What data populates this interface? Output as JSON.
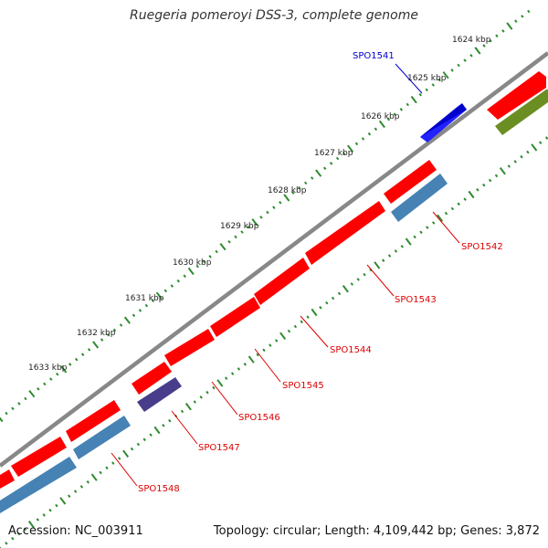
{
  "title": "Ruegeria pomeroyi DSS-3, complete genome",
  "footer": {
    "accession": "Accession: NC_003911",
    "summary": "Topology: circular; Length: 4,109,442 bp; Genes: 3,872"
  },
  "colors": {
    "background": "#ffffff",
    "backbone": "#888888",
    "tick": "#2e8b2e",
    "forward_gene": "#ff0000",
    "reverse_gene": "#4682b4",
    "highlight_gene": "#0000ff",
    "olive_gene": "#6b8e23",
    "purple_gene": "#483d8b",
    "label_blue": "#0000cc",
    "label_red": "#dd0000"
  },
  "scale_labels": [
    "1624 kbp",
    "1625 kbp",
    "1626 kbp",
    "1627 kbp",
    "1628 kbp",
    "1629 kbp",
    "1630 kbp",
    "1631 kbp",
    "1632 kbp",
    "1633 kbp"
  ],
  "gene_labels": [
    {
      "text": "SPO1541",
      "color": "label_blue"
    },
    {
      "text": "SPO1542",
      "color": "label_red"
    },
    {
      "text": "SPO1543",
      "color": "label_red"
    },
    {
      "text": "SPO1544",
      "color": "label_red"
    },
    {
      "text": "SPO1545",
      "color": "label_red"
    },
    {
      "text": "SPO1546",
      "color": "label_red"
    },
    {
      "text": "SPO1547",
      "color": "label_red"
    },
    {
      "text": "SPO1548",
      "color": "label_red"
    }
  ]
}
